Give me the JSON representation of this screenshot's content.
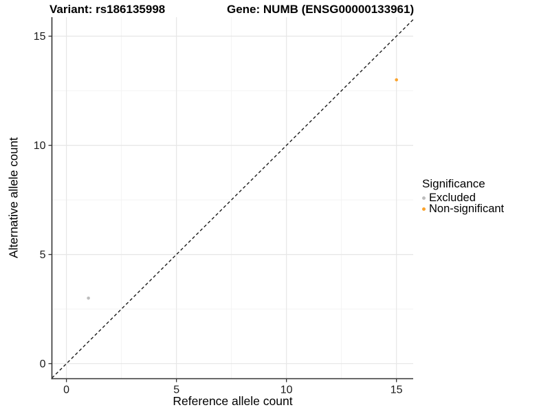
{
  "chart_data": {
    "type": "scatter",
    "title_left": "Variant: rs186135998",
    "title_right": "Gene: NUMB (ENSG00000133961)",
    "xlabel": "Reference allele count",
    "ylabel": "Alternative allele count",
    "xlim": [
      -0.66,
      15.76
    ],
    "ylim": [
      -0.69,
      15.87
    ],
    "x_major_ticks": [
      0,
      5,
      10,
      15
    ],
    "y_major_ticks": [
      0,
      5,
      10,
      15
    ],
    "x_minor_ticks": [
      2.5,
      7.5,
      12.5
    ],
    "y_minor_ticks": [
      2.5,
      7.5,
      12.5
    ],
    "grid": "major and minor gridlines, light gray on white, no panel border",
    "identity_line": {
      "style": "dashed",
      "slope": 1,
      "intercept": 0,
      "color": "#1a1a1a"
    },
    "series": [
      {
        "name": "Excluded",
        "color": "#bdbdbd",
        "points": [
          {
            "x": 1,
            "y": 3
          }
        ]
      },
      {
        "name": "Non-significant",
        "color": "#faa32c",
        "points": [
          {
            "x": 15,
            "y": 13
          }
        ]
      }
    ],
    "legend": {
      "title": "Significance",
      "position": "right"
    }
  },
  "colors": {
    "excluded_point": "#bdbdbd",
    "non_significant_point": "#faa32c",
    "grid_major": "#e6e6e6",
    "grid_minor": "#f3f3f3",
    "axis_line": "#333333",
    "text": "#1a1a1a",
    "background": "#ffffff"
  }
}
